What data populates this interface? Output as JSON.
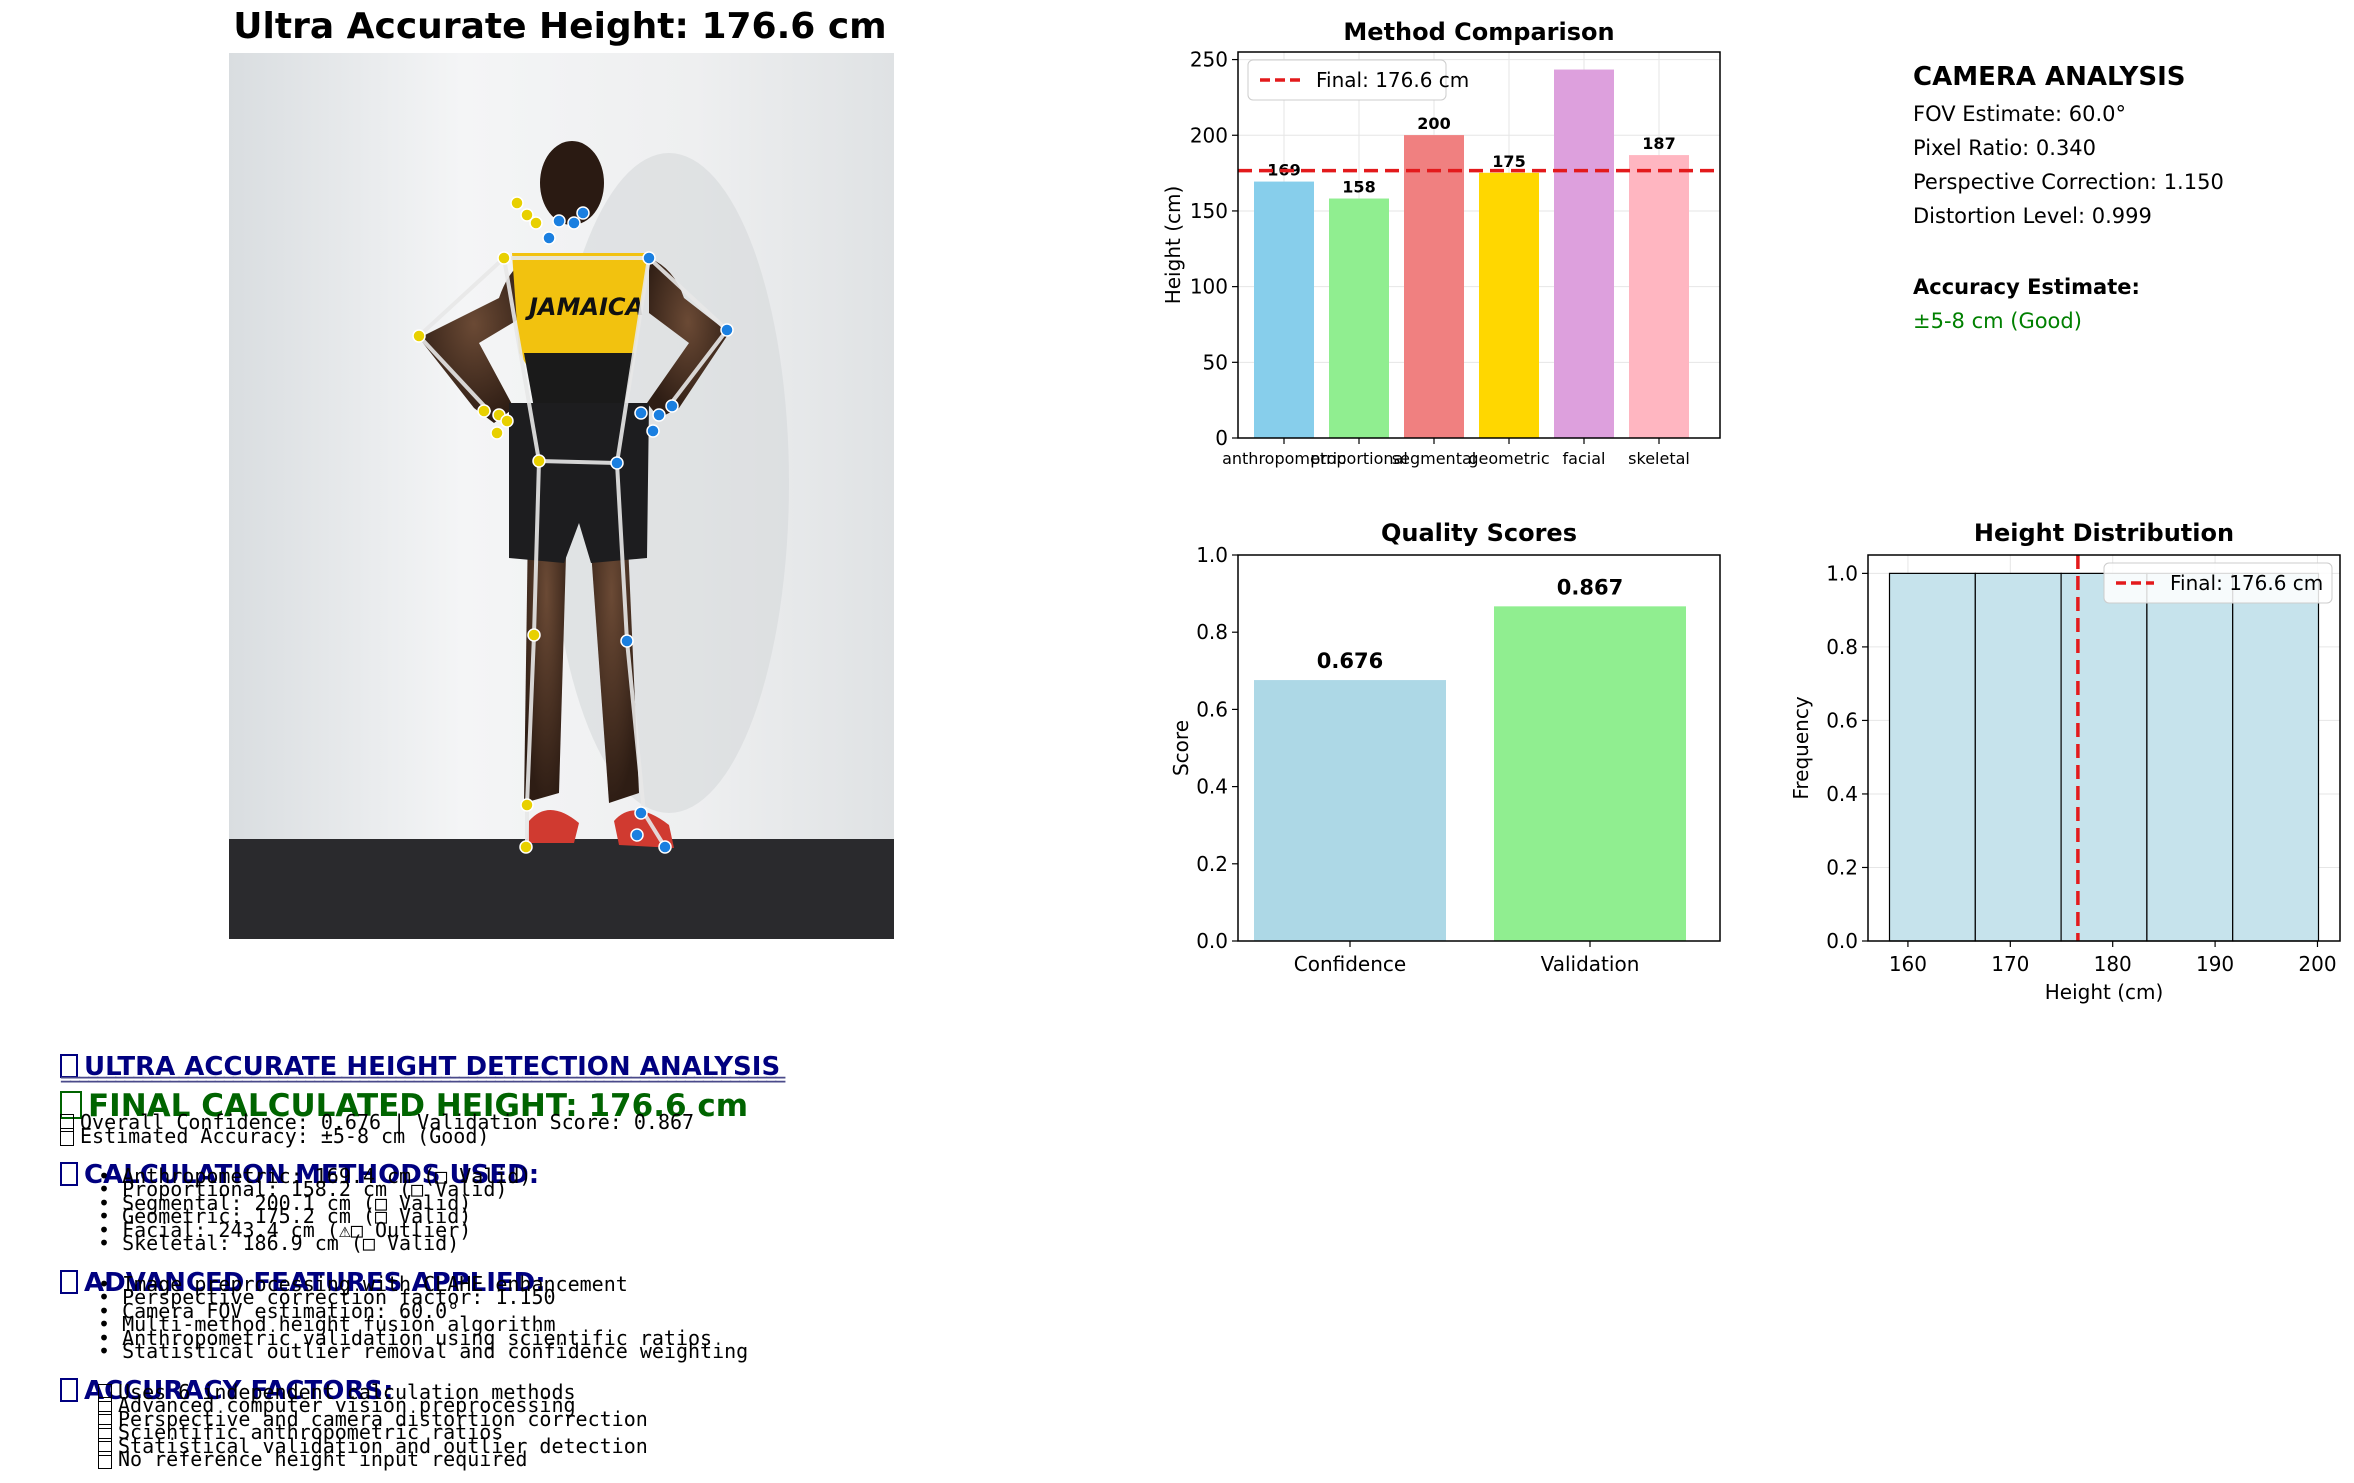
{
  "main_title": "Ultra Accurate Height: 176.6 cm",
  "camera": {
    "title": "CAMERA ANALYSIS",
    "lines": [
      "FOV Estimate: 60.0°",
      "Pixel Ratio: 0.340",
      "Perspective Correction: 1.150",
      "Distortion Level: 0.999"
    ],
    "accuracy_label": "Accuracy Estimate:",
    "accuracy_value": "±5-8 cm (Good)",
    "accuracy_color": "#008000"
  },
  "photo": {
    "shirt_text": "JAMAICA",
    "keypoint_colors": {
      "left": "#e8d000",
      "right": "#1a7fe0"
    },
    "skeleton_color": "#e0e0e0"
  },
  "chart_data": [
    {
      "type": "bar",
      "title": "Method Comparison",
      "xlabel": "",
      "ylabel": "Height (cm)",
      "categories": [
        "anthropometric",
        "proportional",
        "segmental",
        "geometric",
        "facial",
        "skeletal"
      ],
      "values": [
        169.4,
        158.2,
        200.1,
        175.2,
        243.4,
        186.9
      ],
      "value_labels": [
        "169",
        "158",
        "200",
        "175",
        "",
        "187"
      ],
      "colors": [
        "#87CEEB",
        "#90EE90",
        "#F08080",
        "#FFD700",
        "#DDA0DD",
        "#FFB6C1"
      ],
      "ylim": [
        0,
        255
      ],
      "yticks": [
        0,
        50,
        100,
        150,
        200,
        250
      ],
      "reference_line": {
        "value": 176.6,
        "label": "Final: 176.6 cm",
        "color": "#e31a1c"
      },
      "legend": "top-left",
      "grid": true
    },
    {
      "type": "bar",
      "title": "Quality Scores",
      "xlabel": "",
      "ylabel": "Score",
      "categories": [
        "Confidence",
        "Validation"
      ],
      "values": [
        0.676,
        0.867
      ],
      "value_labels": [
        "0.676",
        "0.867"
      ],
      "colors": [
        "#ADD8E6",
        "#90EE90"
      ],
      "ylim": [
        0,
        1.0
      ],
      "yticks": [
        "0.0",
        "0.2",
        "0.4",
        "0.6",
        "0.8",
        "1.0"
      ],
      "grid": false
    },
    {
      "type": "histogram",
      "title": "Height Distribution",
      "xlabel": "Height (cm)",
      "ylabel": "Frequency",
      "bins": [
        158.2,
        166.58,
        174.96,
        183.34,
        191.72,
        200.1
      ],
      "counts": [
        1,
        1,
        1,
        1,
        1
      ],
      "bar_color": "#c6e3ec",
      "xlim": [
        156.1,
        202.2
      ],
      "xticks": [
        160,
        170,
        180,
        190,
        200
      ],
      "ylim": [
        0,
        1.05
      ],
      "yticks": [
        "0.0",
        "0.2",
        "0.4",
        "0.6",
        "0.8",
        "1.0"
      ],
      "reference_line": {
        "value": 176.6,
        "label": "Final: 176.6 cm",
        "color": "#e31a1c"
      },
      "legend": "top-right",
      "grid": true
    }
  ],
  "report": {
    "heading": "ULTRA ACCURATE HEIGHT DETECTION ANALYSIS",
    "rule": "================================================================================",
    "final": "FINAL CALCULATED HEIGHT: 176.6 cm",
    "confidence_line": "Overall Confidence: 0.676 | Validation Score: 0.867",
    "accuracy_line": "Estimated Accuracy: ±5-8 cm (Good)",
    "methods_heading": "CALCULATION METHODS USED:",
    "methods": [
      "• Anthropometric: 169.4 cm (□ Valid)",
      "• Proportional: 158.2 cm (□ Valid)",
      "• Segmental: 200.1 cm (□ Valid)",
      "• Geometric: 175.2 cm (□ Valid)",
      "• Facial: 243.4 cm (⚠□ Outlier)",
      "• Skeletal: 186.9 cm (□ Valid)"
    ],
    "features_heading": "ADVANCED FEATURES APPLIED:",
    "features": [
      "• Image preprocessing with CLAHE enhancement",
      "• Perspective correction factor: 1.150",
      "• Camera FOV estimation: 60.0°",
      "• Multi-method height fusion algorithm",
      "• Anthropometric validation using scientific ratios",
      "• Statistical outlier removal and confidence weighting"
    ],
    "factors_heading": "ACCURACY FACTORS:",
    "factors": [
      "Uses 6 independent calculation methods",
      "Advanced computer vision preprocessing",
      "Perspective and camera distortion correction",
      "Scientific anthropometric ratios",
      "Statistical validation and outlier detection",
      "No reference height input required"
    ]
  }
}
